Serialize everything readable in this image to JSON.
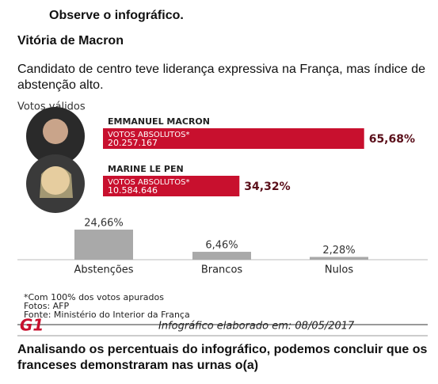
{
  "header": {
    "instruction": "Observe o infográfico.",
    "title": "Vitória de Macron",
    "subtitle": "Candidato de centro teve liderança expressiva na França, mas índice de abstenção alto."
  },
  "infographic": {
    "votes_title": "Votos válidos",
    "candidates": [
      {
        "name": "EMMANUEL MACRON",
        "label": "VOTOS ABSOLUTOS*",
        "absolute": "20.257.167",
        "value": 65.68,
        "value_label": "65,68%"
      },
      {
        "name": "MARINE LE PEN",
        "label": "VOTOS ABSOLUTOS*",
        "absolute": "10.584.646",
        "value": 34.32,
        "value_label": "34,32%"
      }
    ],
    "others": {
      "categories": [
        "Abstenções",
        "Brancos",
        "Nulos"
      ],
      "values": [
        24.66,
        6.46,
        2.28
      ],
      "value_labels": [
        "24,66%",
        "6,46%",
        "2,28%"
      ]
    },
    "notes": [
      "*Com 100% dos votos apurados",
      "Fotos: AFP",
      "Fonte: Ministério do Interior da França"
    ],
    "logo": "G1",
    "credit": "Infográfico elaborado em: 08/05/2017"
  },
  "question": "Analisando os percentuais do infográfico, podemos concluir que os franceses demonstraram nas urnas o(a)"
}
